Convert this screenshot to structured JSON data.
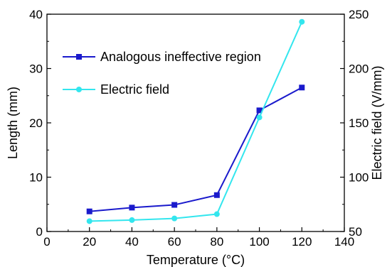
{
  "chart_data": {
    "type": "line",
    "xlabel": "Temperature (°C)",
    "ylabel": "Length (mm)",
    "y2label": "Electric field (V/mm)",
    "xlim": [
      0,
      140
    ],
    "ylim": [
      0,
      40
    ],
    "y2lim": [
      50,
      250
    ],
    "xticks": [
      "0",
      "20",
      "40",
      "60",
      "80",
      "100",
      "120",
      "140"
    ],
    "yticks": [
      "0",
      "10",
      "20",
      "30",
      "40"
    ],
    "y2ticks": [
      "50",
      "100",
      "150",
      "200",
      "250"
    ],
    "grid": false,
    "legend_position": "top-left",
    "x": [
      20,
      40,
      60,
      80,
      100,
      120
    ],
    "series": [
      {
        "name": "Analogous ineffective region",
        "axis": "left",
        "marker": "square",
        "color": "#1a1acc",
        "values": [
          3.7,
          4.4,
          4.9,
          6.7,
          22.3,
          26.5
        ]
      },
      {
        "name": "Electric field",
        "axis": "right",
        "marker": "circle",
        "color": "#33e6ee",
        "values": [
          59.5,
          60.5,
          62,
          66,
          155,
          243
        ]
      }
    ]
  }
}
